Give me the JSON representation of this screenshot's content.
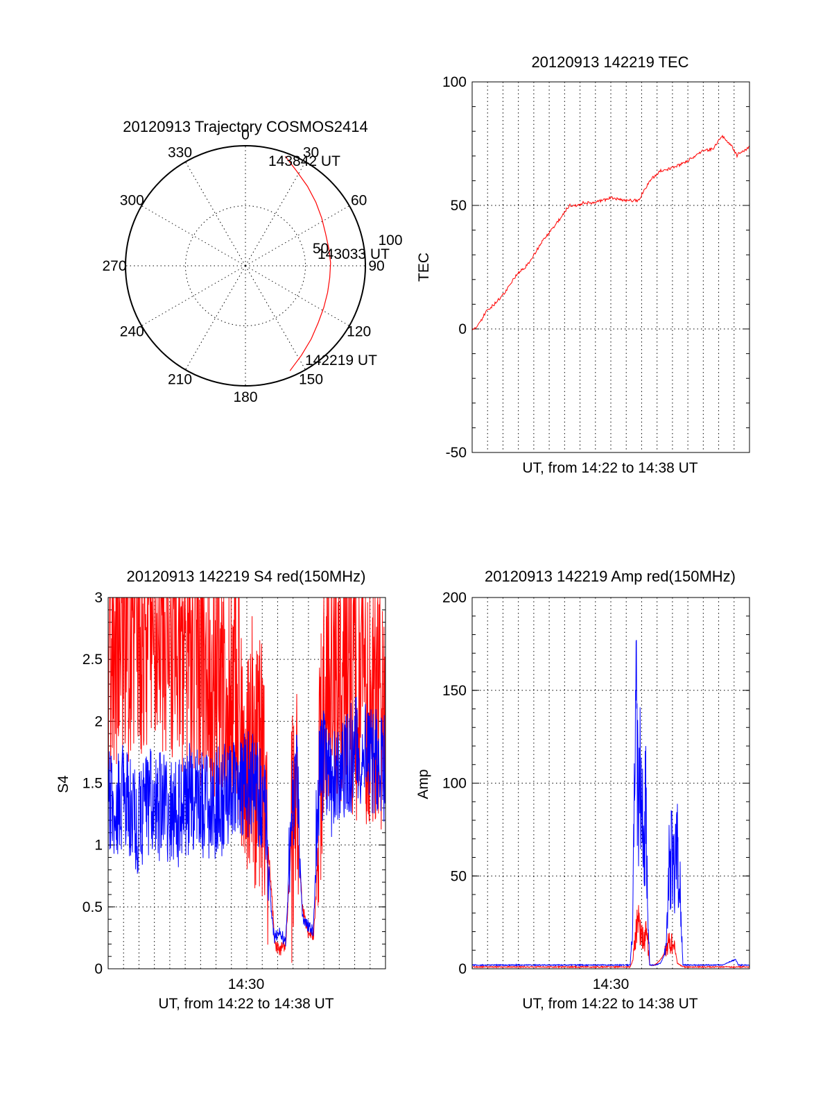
{
  "colors": {
    "red": "#ff0000",
    "blue": "#0000ff",
    "axis": "#000000",
    "background": "#ffffff"
  },
  "chart_data": [
    {
      "type": "polar",
      "title": "20120913 Trajectory COSMOS2414",
      "azimuth_labels": [
        "0",
        "30",
        "60",
        "90",
        "120",
        "150",
        "180",
        "210",
        "240",
        "270",
        "300",
        "330"
      ],
      "radial_labels": [
        "50",
        "100"
      ],
      "rlim": [
        0,
        100
      ],
      "grid": true,
      "annotations": [
        "143842 UT",
        "143033 UT",
        "142219 UT"
      ],
      "series": [
        {
          "color": "#ff0000",
          "azimuth_deg": [
            157,
            148,
            138,
            128,
            118,
            108,
            98,
            88,
            78,
            68,
            58,
            48,
            38,
            28,
            20
          ],
          "radius": [
            95,
            88,
            82,
            77,
            74,
            72,
            71,
            71,
            71,
            72,
            75,
            79,
            84,
            90,
            97
          ]
        }
      ]
    },
    {
      "type": "line",
      "title": "20120913 142219 TEC",
      "xlabel": "UT, from 14:22 to 14:38 UT",
      "ylabel": "TEC",
      "xlim": [
        0,
        1
      ],
      "ylim": [
        -50,
        100
      ],
      "yticks": [
        "100",
        "50",
        "0",
        "-50"
      ],
      "grid": true,
      "series": [
        {
          "color": "#ff0000",
          "x": [
            0.0,
            0.02,
            0.05,
            0.08,
            0.12,
            0.16,
            0.2,
            0.25,
            0.3,
            0.35,
            0.38,
            0.4,
            0.43,
            0.47,
            0.5,
            0.55,
            0.6,
            0.62,
            0.64,
            0.68,
            0.72,
            0.76,
            0.79,
            0.83,
            0.87,
            0.9,
            0.93,
            0.955,
            0.96,
            0.965,
            0.98,
            1.0
          ],
          "y": [
            0,
            1,
            7,
            10,
            15,
            22,
            26,
            35,
            42,
            50,
            50,
            51,
            51,
            52,
            53,
            52,
            52,
            56,
            60,
            64,
            65,
            67,
            69,
            72,
            73,
            78,
            75,
            70,
            71,
            71,
            72,
            74
          ]
        }
      ]
    },
    {
      "type": "line",
      "title": "20120913 142219 S4 red(150MHz)",
      "xlabel": "UT, from 14:22 to 14:38 UT",
      "ylabel": "S4",
      "xtick_label": "14:30",
      "xlim": [
        0,
        1
      ],
      "ylim": [
        0,
        3
      ],
      "yticks": [
        "3",
        "2.5",
        "2",
        "1.5",
        "1",
        "0.5",
        "0"
      ],
      "grid": true,
      "series": [
        {
          "color": "#ff0000",
          "x": [
            0.0,
            0.05,
            0.1,
            0.15,
            0.2,
            0.25,
            0.3,
            0.35,
            0.4,
            0.45,
            0.5,
            0.55,
            0.57,
            0.59,
            0.6,
            0.62,
            0.64,
            0.66,
            0.68,
            0.7,
            0.72,
            0.74,
            0.75,
            0.76,
            0.78,
            0.8,
            0.85,
            0.9,
            0.95,
            1.0
          ],
          "y": [
            2.6,
            2.8,
            2.7,
            2.9,
            2.8,
            2.6,
            2.7,
            2.5,
            2.4,
            2.3,
            1.9,
            1.6,
            1.2,
            0.6,
            0.2,
            0.15,
            0.2,
            1.0,
            1.2,
            0.5,
            0.3,
            0.25,
            0.6,
            1.3,
            2.3,
            2.5,
            2.4,
            2.2,
            2.3,
            2.1
          ]
        },
        {
          "color": "#0000ff",
          "x": [
            0.0,
            0.05,
            0.1,
            0.15,
            0.2,
            0.25,
            0.3,
            0.35,
            0.4,
            0.45,
            0.5,
            0.55,
            0.57,
            0.59,
            0.6,
            0.62,
            0.64,
            0.66,
            0.68,
            0.7,
            0.72,
            0.74,
            0.75,
            0.76,
            0.78,
            0.8,
            0.85,
            0.9,
            0.95,
            1.0
          ],
          "y": [
            1.3,
            1.4,
            1.2,
            1.35,
            1.3,
            1.25,
            1.4,
            1.3,
            1.35,
            1.4,
            1.5,
            1.4,
            1.2,
            0.4,
            0.25,
            0.3,
            0.2,
            1.2,
            1.5,
            0.4,
            0.35,
            0.3,
            1.0,
            1.5,
            1.7,
            1.5,
            1.6,
            1.8,
            1.7,
            1.6
          ]
        }
      ]
    },
    {
      "type": "line",
      "title": "20120913 142219 Amp red(150MHz)",
      "xlabel": "UT, from 14:22 to 14:38 UT",
      "ylabel": "Amp",
      "xtick_label": "14:30",
      "xlim": [
        0,
        1
      ],
      "ylim": [
        0,
        200
      ],
      "yticks": [
        "200",
        "150",
        "100",
        "50",
        "0"
      ],
      "grid": true,
      "series": [
        {
          "color": "#ff0000",
          "x": [
            0.0,
            0.2,
            0.4,
            0.57,
            0.58,
            0.59,
            0.6,
            0.61,
            0.62,
            0.63,
            0.64,
            0.66,
            0.68,
            0.7,
            0.71,
            0.72,
            0.73,
            0.74,
            0.76,
            0.8,
            0.9,
            1.0
          ],
          "y": [
            1,
            1,
            1,
            1,
            5,
            20,
            25,
            18,
            15,
            20,
            2,
            2,
            5,
            10,
            15,
            14,
            12,
            3,
            1,
            1,
            1,
            1
          ]
        },
        {
          "color": "#0000ff",
          "x": [
            0.0,
            0.2,
            0.4,
            0.57,
            0.58,
            0.59,
            0.6,
            0.61,
            0.62,
            0.625,
            0.63,
            0.64,
            0.66,
            0.68,
            0.7,
            0.71,
            0.72,
            0.73,
            0.74,
            0.75,
            0.76,
            0.8,
            0.9,
            0.95,
            0.96,
            1.0
          ],
          "y": [
            2,
            2,
            2,
            2,
            30,
            140,
            90,
            105,
            60,
            95,
            50,
            2,
            2,
            3,
            10,
            55,
            60,
            50,
            62,
            40,
            2,
            2,
            2,
            5,
            2,
            2
          ]
        }
      ]
    }
  ]
}
